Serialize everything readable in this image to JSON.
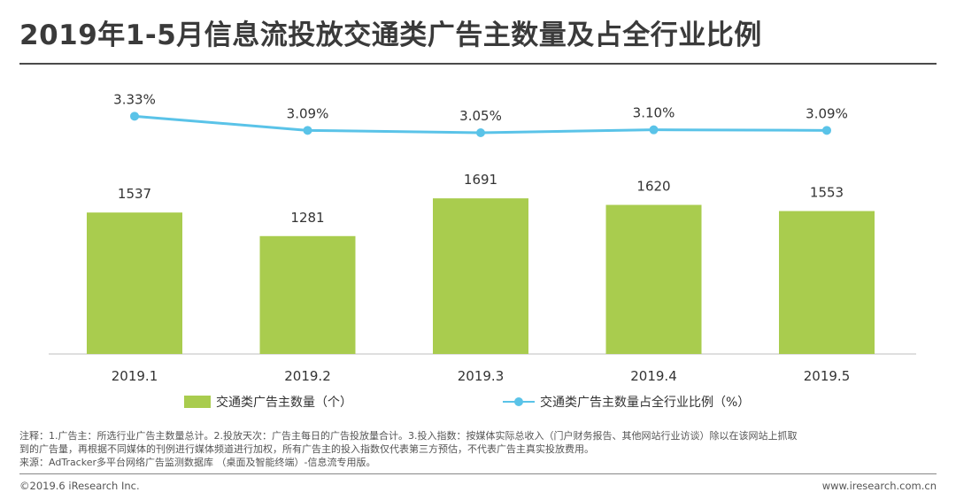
{
  "title": "2019年1-5月信息流投放交通类广告主数量及占全行业比例",
  "chart_data": {
    "type": "bar",
    "categories": [
      "2019.1",
      "2019.2",
      "2019.3",
      "2019.4",
      "2019.5"
    ],
    "series": [
      {
        "name": "交通类广告主数量（个）",
        "kind": "bar",
        "values": [
          1537,
          1281,
          1691,
          1620,
          1553
        ],
        "labels": [
          "1537",
          "1281",
          "1691",
          "1620",
          "1553"
        ],
        "color": "#a9cc4e"
      },
      {
        "name": "交通类广告主数量占全行业比例（%）",
        "kind": "line",
        "values": [
          3.33,
          3.09,
          3.05,
          3.1,
          3.09
        ],
        "labels": [
          "3.33%",
          "3.09%",
          "3.05%",
          "3.10%",
          "3.09%"
        ],
        "color": "#5ac3e8"
      }
    ],
    "bar_ylim": [
      0,
      2500
    ],
    "line_ylim": [
      2.6,
      3.8
    ]
  },
  "notes": {
    "line1": "注释：1.广告主：所选行业广告主数量总计。2.投放天次：广告主每日的广告投放量合计。3.投入指数：按媒体实际总收入（门户财务报告、其他网站行业访谈）除以在该网站上抓取",
    "line2": "到的广告量，再根据不同媒体的刊例进行媒体频道进行加权，所有广告主的投入指数仅代表第三方预估，不代表广告主真实投放费用。",
    "line3": "来源：AdTracker多平台网络广告监测数据库 （桌面及智能终端）-信息流专用版。"
  },
  "footer": {
    "copyright": "©2019.6 iResearch Inc.",
    "website": "www.iresearch.com.cn"
  }
}
